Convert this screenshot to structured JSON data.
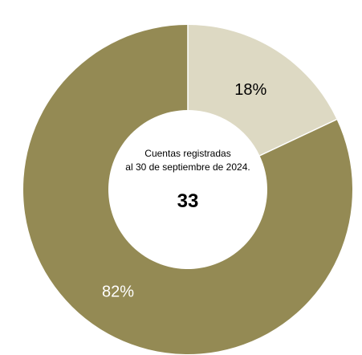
{
  "chart_data": {
    "type": "pie",
    "subtype": "donut",
    "center": {
      "line1": "Cuentas registradas",
      "line2": "al 30 de septiembre de 2024.",
      "total": "33"
    },
    "slices": [
      {
        "label": "18%",
        "value": 18,
        "color": "#ddd9c3",
        "label_color": "#000000"
      },
      {
        "label": "82%",
        "value": 82,
        "color": "#948a54",
        "label_color": "#ffffff"
      }
    ],
    "legend": "none"
  }
}
